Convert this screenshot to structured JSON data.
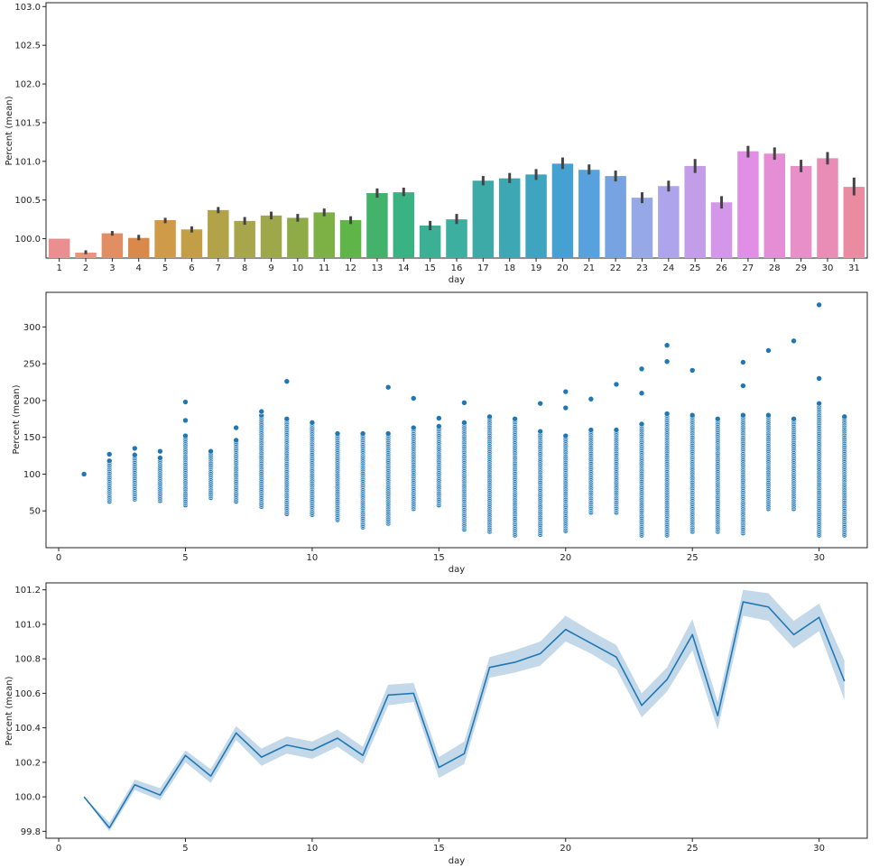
{
  "chart_data": [
    {
      "type": "bar",
      "xlabel": "day",
      "ylabel": "Percent (mean)",
      "ylim": [
        99.75,
        103.05
      ],
      "yticks": [
        100.0,
        100.5,
        101.0,
        101.5,
        102.0,
        102.5,
        103.0
      ],
      "ytick_labels": [
        "100.0",
        "100.5",
        "101.0",
        "101.5",
        "102.0",
        "102.5",
        "103.0"
      ],
      "categories": [
        "1",
        "2",
        "3",
        "4",
        "5",
        "6",
        "7",
        "8",
        "9",
        "10",
        "11",
        "12",
        "13",
        "14",
        "15",
        "16",
        "17",
        "18",
        "19",
        "20",
        "21",
        "22",
        "23",
        "24",
        "25",
        "26",
        "27",
        "28",
        "29",
        "30",
        "31"
      ],
      "values": [
        100.0,
        99.82,
        100.07,
        100.01,
        100.24,
        100.12,
        100.37,
        100.23,
        100.3,
        100.27,
        100.34,
        100.24,
        100.59,
        100.6,
        100.17,
        100.25,
        100.75,
        100.78,
        100.83,
        100.97,
        100.89,
        100.81,
        100.53,
        100.68,
        100.94,
        100.47,
        101.13,
        101.1,
        100.94,
        101.04,
        100.67
      ],
      "error_low": [
        100.0,
        99.8,
        100.04,
        99.98,
        100.2,
        100.08,
        100.33,
        100.18,
        100.25,
        100.22,
        100.29,
        100.19,
        100.53,
        100.55,
        100.11,
        100.19,
        100.69,
        100.72,
        100.76,
        100.9,
        100.83,
        100.74,
        100.46,
        100.61,
        100.85,
        100.39,
        101.05,
        101.02,
        100.86,
        100.96,
        100.56
      ],
      "error_high": [
        100.0,
        99.85,
        100.1,
        100.05,
        100.27,
        100.16,
        100.41,
        100.28,
        100.35,
        100.32,
        100.39,
        100.29,
        100.65,
        100.66,
        100.23,
        100.32,
        100.81,
        100.85,
        100.9,
        101.05,
        100.96,
        100.88,
        100.6,
        100.75,
        101.03,
        100.55,
        101.2,
        101.18,
        101.02,
        101.12,
        100.79
      ],
      "colors": [
        "#eb8e8f",
        "#e9947e",
        "#e08e62",
        "#d98a4a",
        "#d09b48",
        "#c29e46",
        "#b2a348",
        "#a8a64a",
        "#9ea84a",
        "#8fab48",
        "#7db045",
        "#5fb548",
        "#43b36b",
        "#3ab384",
        "#3bb095",
        "#3cafa1",
        "#3daaa7",
        "#3da7b3",
        "#3fa4c0",
        "#46a1d3",
        "#56a1de",
        "#78a3e3",
        "#97a8e7",
        "#aea4eb",
        "#c49de9",
        "#d496e8",
        "#e08ee6",
        "#e58ed6",
        "#e88ec8",
        "#e98db6",
        "#eb8ba1"
      ],
      "error_color": "#444444"
    },
    {
      "type": "scatter",
      "xlabel": "day",
      "ylabel": "Percent (mean)",
      "xlim": [
        -0.5,
        31.9
      ],
      "ylim": [
        0,
        347
      ],
      "xticks": [
        0,
        5,
        10,
        15,
        20,
        25,
        30
      ],
      "xtick_labels": [
        "0",
        "5",
        "10",
        "15",
        "20",
        "25",
        "30"
      ],
      "yticks": [
        50,
        100,
        150,
        200,
        250,
        300
      ],
      "ytick_labels": [
        "50",
        "100",
        "150",
        "200",
        "250",
        "300"
      ],
      "color": "#1f77b4",
      "columns": [
        {
          "x": 1,
          "min": 100,
          "max": 100,
          "outliers": []
        },
        {
          "x": 2,
          "min": 63,
          "max": 118,
          "outliers": [
            127
          ]
        },
        {
          "x": 3,
          "min": 66,
          "max": 126,
          "outliers": [
            135
          ]
        },
        {
          "x": 4,
          "min": 64,
          "max": 122,
          "outliers": [
            131
          ]
        },
        {
          "x": 5,
          "min": 58,
          "max": 152,
          "outliers": [
            173,
            198
          ]
        },
        {
          "x": 6,
          "min": 68,
          "max": 131,
          "outliers": []
        },
        {
          "x": 7,
          "min": 63,
          "max": 146,
          "outliers": [
            163
          ]
        },
        {
          "x": 8,
          "min": 56,
          "max": 180,
          "outliers": [
            185
          ]
        },
        {
          "x": 9,
          "min": 46,
          "max": 175,
          "outliers": [
            226
          ]
        },
        {
          "x": 10,
          "min": 45,
          "max": 170,
          "outliers": []
        },
        {
          "x": 11,
          "min": 38,
          "max": 155,
          "outliers": []
        },
        {
          "x": 12,
          "min": 28,
          "max": 155,
          "outliers": []
        },
        {
          "x": 13,
          "min": 33,
          "max": 155,
          "outliers": [
            218
          ]
        },
        {
          "x": 14,
          "min": 53,
          "max": 163,
          "outliers": [
            203
          ]
        },
        {
          "x": 15,
          "min": 58,
          "max": 165,
          "outliers": [
            176
          ]
        },
        {
          "x": 16,
          "min": 25,
          "max": 170,
          "outliers": [
            197
          ]
        },
        {
          "x": 17,
          "min": 22,
          "max": 178,
          "outliers": []
        },
        {
          "x": 18,
          "min": 17,
          "max": 175,
          "outliers": []
        },
        {
          "x": 19,
          "min": 18,
          "max": 158,
          "outliers": [
            196
          ]
        },
        {
          "x": 20,
          "min": 23,
          "max": 152,
          "outliers": [
            190,
            212
          ]
        },
        {
          "x": 21,
          "min": 48,
          "max": 160,
          "outliers": [
            202
          ]
        },
        {
          "x": 22,
          "min": 48,
          "max": 160,
          "outliers": [
            222
          ]
        },
        {
          "x": 23,
          "min": 17,
          "max": 168,
          "outliers": [
            210,
            243
          ]
        },
        {
          "x": 24,
          "min": 17,
          "max": 182,
          "outliers": [
            253,
            275
          ]
        },
        {
          "x": 25,
          "min": 22,
          "max": 180,
          "outliers": [
            241
          ]
        },
        {
          "x": 26,
          "min": 22,
          "max": 175,
          "outliers": []
        },
        {
          "x": 27,
          "min": 20,
          "max": 180,
          "outliers": [
            220,
            252
          ]
        },
        {
          "x": 28,
          "min": 53,
          "max": 180,
          "outliers": [
            268
          ]
        },
        {
          "x": 29,
          "min": 53,
          "max": 175,
          "outliers": [
            281
          ]
        },
        {
          "x": 30,
          "min": 17,
          "max": 196,
          "outliers": [
            230,
            330
          ]
        },
        {
          "x": 31,
          "min": 17,
          "max": 178,
          "outliers": []
        }
      ]
    },
    {
      "type": "line",
      "xlabel": "day",
      "ylabel": "Percent (mean)",
      "xlim": [
        -0.5,
        31.9
      ],
      "ylim": [
        99.76,
        101.24
      ],
      "xticks": [
        0,
        5,
        10,
        15,
        20,
        25,
        30
      ],
      "xtick_labels": [
        "0",
        "5",
        "10",
        "15",
        "20",
        "25",
        "30"
      ],
      "yticks": [
        99.8,
        100.0,
        100.2,
        100.4,
        100.6,
        100.8,
        101.0,
        101.2
      ],
      "ytick_labels": [
        "99.8",
        "100.0",
        "100.2",
        "100.4",
        "100.6",
        "100.8",
        "101.0",
        "101.2"
      ],
      "line_color": "#1f77b4",
      "band_color": "#a9c7e0",
      "x": [
        1,
        2,
        3,
        4,
        5,
        6,
        7,
        8,
        9,
        10,
        11,
        12,
        13,
        14,
        15,
        16,
        17,
        18,
        19,
        20,
        21,
        22,
        23,
        24,
        25,
        26,
        27,
        28,
        29,
        30,
        31
      ],
      "y": [
        100.0,
        99.82,
        100.07,
        100.01,
        100.24,
        100.12,
        100.37,
        100.23,
        100.3,
        100.27,
        100.34,
        100.24,
        100.59,
        100.6,
        100.17,
        100.25,
        100.75,
        100.78,
        100.83,
        100.97,
        100.89,
        100.81,
        100.53,
        100.68,
        100.94,
        100.47,
        101.13,
        101.1,
        100.94,
        101.04,
        100.67
      ],
      "ci_low": [
        100.0,
        99.8,
        100.04,
        99.98,
        100.2,
        100.08,
        100.33,
        100.18,
        100.25,
        100.22,
        100.29,
        100.19,
        100.53,
        100.55,
        100.11,
        100.19,
        100.69,
        100.72,
        100.76,
        100.9,
        100.83,
        100.74,
        100.46,
        100.61,
        100.85,
        100.39,
        101.05,
        101.02,
        100.86,
        100.96,
        100.56
      ],
      "ci_high": [
        100.0,
        99.85,
        100.1,
        100.05,
        100.27,
        100.16,
        100.41,
        100.28,
        100.35,
        100.32,
        100.39,
        100.29,
        100.65,
        100.66,
        100.23,
        100.32,
        100.81,
        100.85,
        100.9,
        101.05,
        100.96,
        100.88,
        100.6,
        100.75,
        101.03,
        100.55,
        101.2,
        101.18,
        101.02,
        101.12,
        100.79
      ]
    }
  ]
}
